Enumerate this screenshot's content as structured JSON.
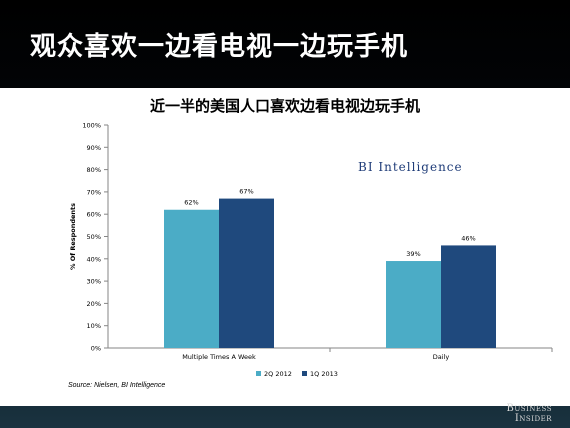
{
  "slide": {
    "title": "观众喜欢一边看电视一边玩手机",
    "logo_line1": "Business",
    "logo_line2": "Insider"
  },
  "brand": "BI Intelligence",
  "source": "Source: Nielsen, BI Intelligence",
  "colors": {
    "series1": "#4bacc6",
    "series2": "#1f497d"
  },
  "chart_data": {
    "type": "bar",
    "title": "近一半的美国人口喜欢边看电视边玩手机",
    "ylabel": "% Of Respondents",
    "xlabel": "",
    "categories": [
      "Multiple Times A Week",
      "Daily"
    ],
    "series": [
      {
        "name": "2Q 2012",
        "values": [
          62,
          39
        ],
        "labels": [
          "62%",
          "39%"
        ]
      },
      {
        "name": "1Q 2013",
        "values": [
          67,
          46
        ],
        "labels": [
          "67%",
          "46%"
        ]
      }
    ],
    "ylim": [
      0,
      100
    ],
    "yticks": [
      "0%",
      "10%",
      "20%",
      "30%",
      "40%",
      "50%",
      "60%",
      "70%",
      "80%",
      "90%",
      "100%"
    ],
    "grid": false,
    "legend": "bottom"
  }
}
